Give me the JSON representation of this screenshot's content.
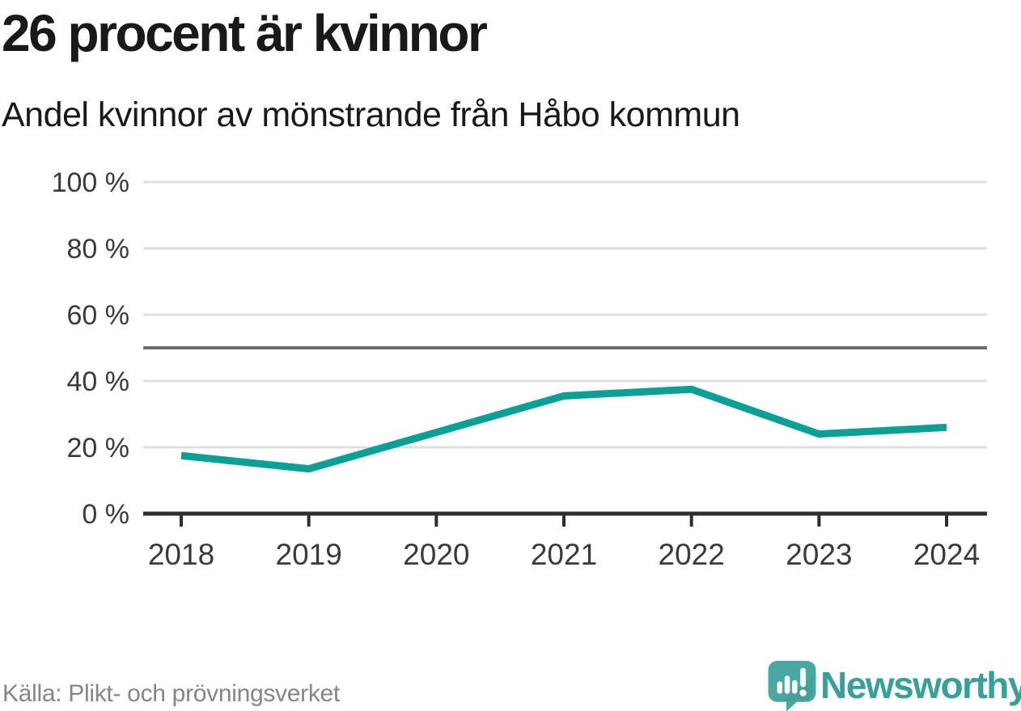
{
  "chart_data": {
    "type": "line",
    "title": "26 procent är kvinnor",
    "subtitle": "Andel kvinnor av mönstrande från Håbo kommun",
    "x": [
      2018,
      2019,
      2020,
      2021,
      2022,
      2023,
      2024
    ],
    "series": [
      {
        "name": "Andel kvinnor av mönstrande",
        "values": [
          17.5,
          13.5,
          24.5,
          35.5,
          37.5,
          24,
          26
        ]
      }
    ],
    "ylim": [
      0,
      100
    ],
    "yticks": [
      0,
      20,
      40,
      60,
      80,
      100
    ],
    "ytick_label_suffix": " %",
    "reference_line": 50,
    "grid": true,
    "legend": false,
    "xlabel": "",
    "ylabel": ""
  },
  "footer": {
    "source": "Källa: Plikt- och prövningsverket",
    "brand": "Newsworthy"
  },
  "colors": {
    "line": "#0aa096",
    "grid": "#dedede",
    "reference_line": "#6b6b70",
    "axis": "#2e2e2e",
    "tick_text": "#3a3a3a",
    "title_text": "#191919",
    "source_text": "#85858a",
    "brand_teal": "#38a09b",
    "logo_mark": "#4aa7a1",
    "logo_mark_shade": "#3f9a94",
    "logo_glyph": "#ffffff"
  }
}
